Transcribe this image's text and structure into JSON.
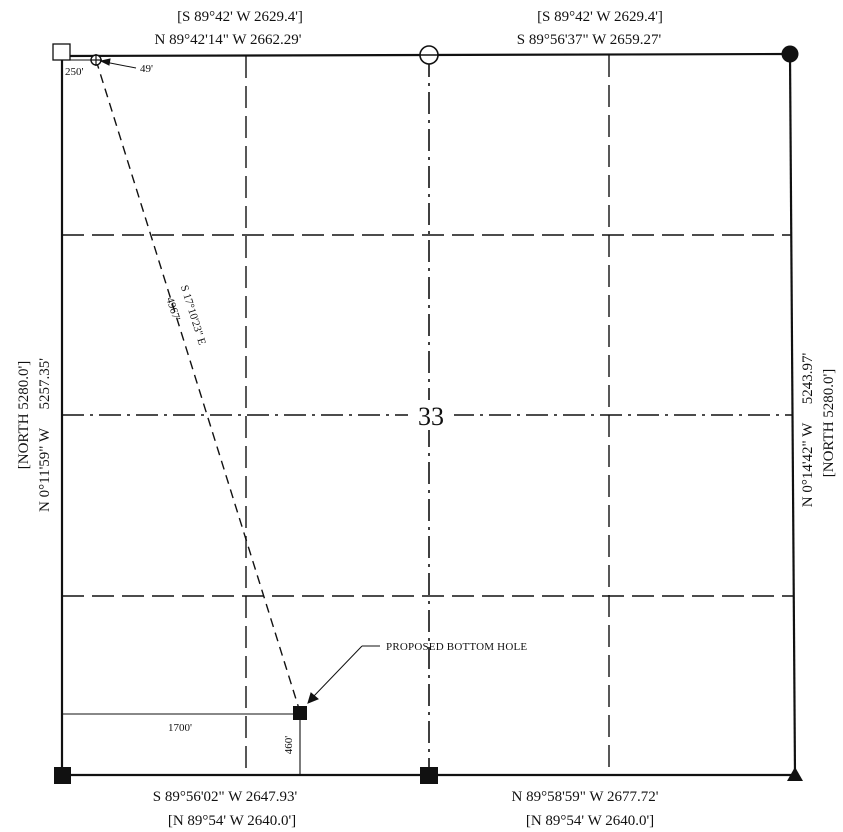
{
  "section_number": "33",
  "north_line": {
    "left_record": "[S 89°42' W  2629.4']",
    "left_measured": "N 89°42'14\" W  2662.29'",
    "right_record": "[S 89°42' W  2629.4']",
    "right_measured": "S 89°56'37\" W   2659.27'"
  },
  "south_line": {
    "left_measured": "S 89°56'02\" W   2647.93'",
    "left_record": "[N 89°54' W  2640.0']",
    "right_measured": "N 89°58'59\" W  2677.72'",
    "right_record": "[N 89°54' W  2640.0']"
  },
  "west_line": {
    "record": "[NORTH  5280.0']",
    "measured": "N 0°11'59\" W     5257.35'"
  },
  "east_line": {
    "measured": "N 0°14'42\" W     5243.97'",
    "record": "[NORTH  5280.0']"
  },
  "surface_location": {
    "offset_west": "250'",
    "offset_north": "49'"
  },
  "well_path": {
    "bearing": "S 17°10'23\" E",
    "distance": "4967'"
  },
  "bottom_hole": {
    "label": "PROPOSED BOTTOM HOLE",
    "offset_west": "1700'",
    "offset_south": "460'"
  }
}
